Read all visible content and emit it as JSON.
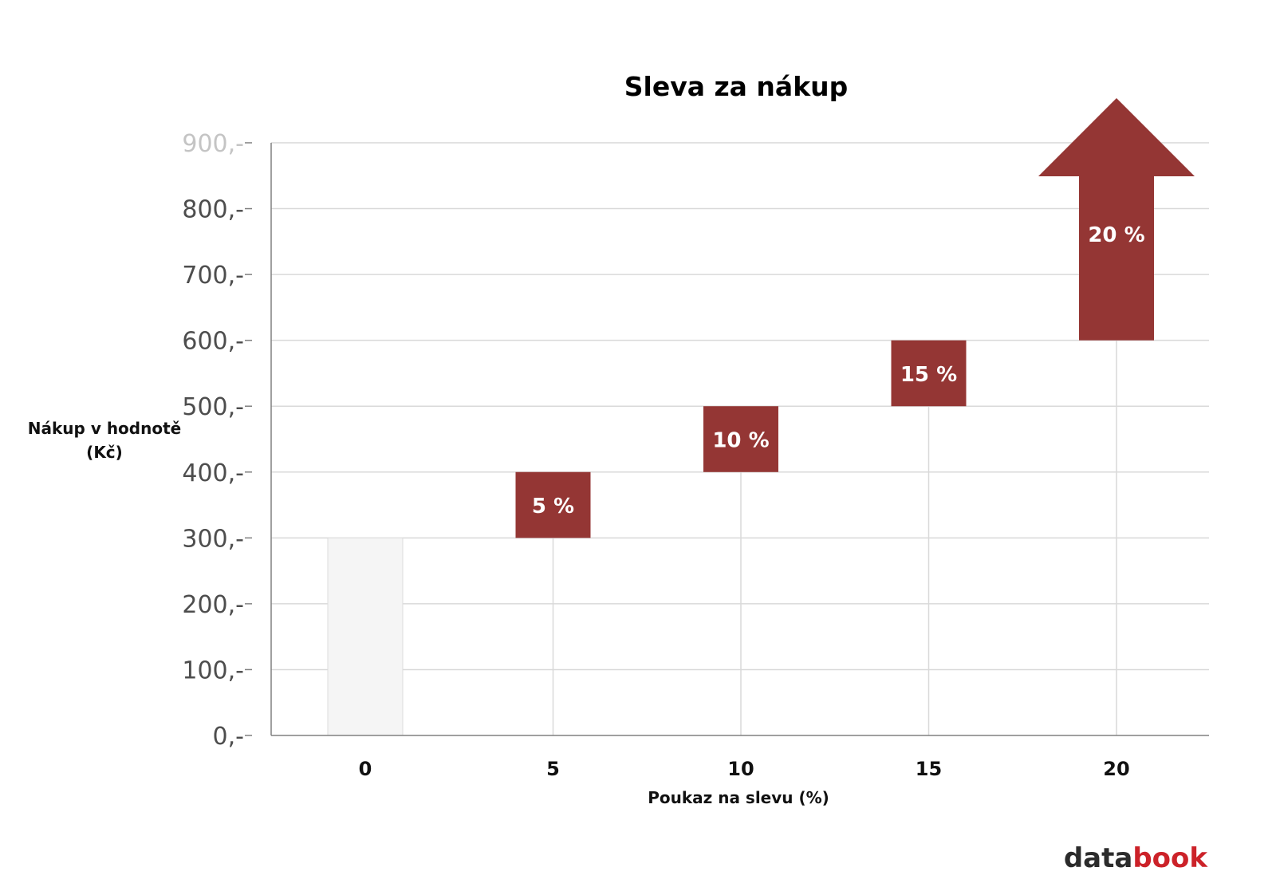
{
  "chart_data": {
    "type": "bar",
    "title": "Sleva za nákup",
    "xlabel": "Poukaz na slevu (%)",
    "ylabel_lines": [
      "Nákup v hodnotě",
      "(Kč)"
    ],
    "categories": [
      "0",
      "5",
      "10",
      "15",
      "20"
    ],
    "ylim": [
      0,
      900
    ],
    "yticks": [
      {
        "value": 0,
        "label": "0,-"
      },
      {
        "value": 100,
        "label": "100,-"
      },
      {
        "value": 200,
        "label": "200,-"
      },
      {
        "value": 300,
        "label": "300,-"
      },
      {
        "value": 400,
        "label": "400,-"
      },
      {
        "value": 500,
        "label": "500,-"
      },
      {
        "value": 600,
        "label": "600,-"
      },
      {
        "value": 700,
        "label": "700,-"
      },
      {
        "value": 800,
        "label": "800,-"
      },
      {
        "value": 900,
        "label": "900,-"
      }
    ],
    "bars": [
      {
        "category": "0",
        "low": 0,
        "high": 300,
        "label": "",
        "color": "#f5f5f5"
      },
      {
        "category": "5",
        "low": 300,
        "high": 400,
        "label": "5 %",
        "color": "#943634"
      },
      {
        "category": "10",
        "low": 400,
        "high": 500,
        "label": "10 %",
        "color": "#943634"
      },
      {
        "category": "15",
        "low": 500,
        "high": 600,
        "label": "15 %",
        "color": "#943634"
      },
      {
        "category": "20",
        "low": 600,
        "high": null,
        "label": "20 %",
        "color": "#943634",
        "shape": "up-arrow"
      }
    ],
    "grid": true,
    "legend": "none"
  },
  "logo": {
    "part1": "data",
    "part2": "book"
  },
  "colors": {
    "accent": "#943634",
    "grid": "#d9d9d9",
    "axis": "#808080",
    "logo_red": "#cc2229"
  }
}
